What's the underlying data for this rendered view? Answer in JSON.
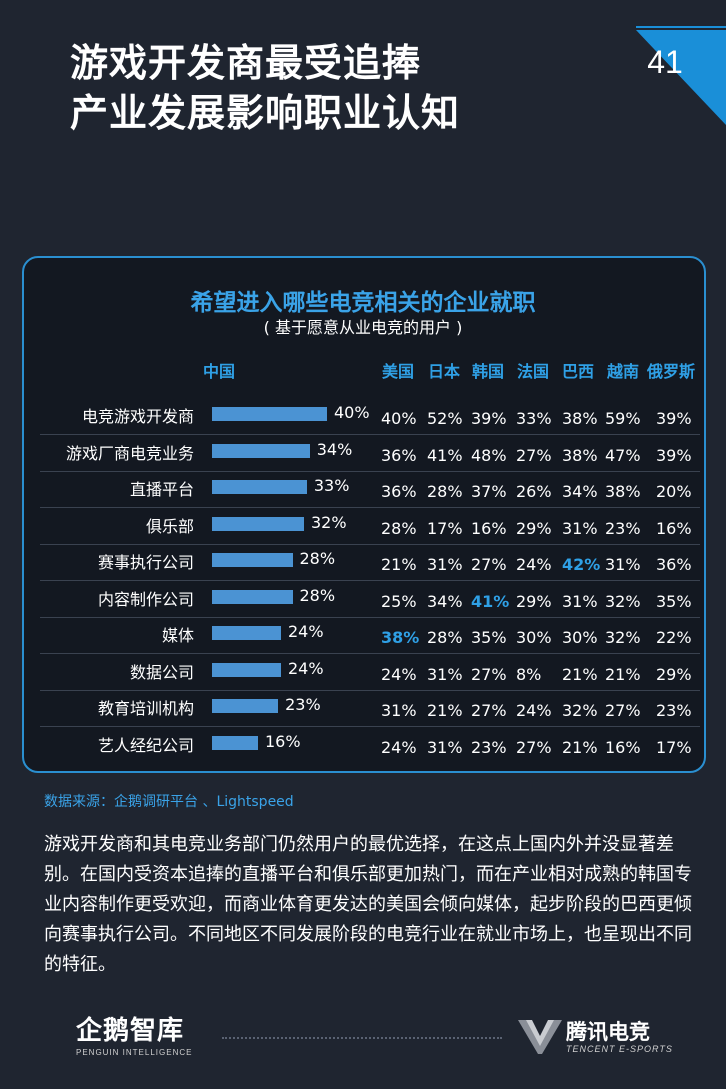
{
  "header": {
    "title_line1": "游戏开发商最受追捧",
    "title_line2": "产业发展影响职业认知",
    "page_number": "41",
    "corner_color": "#1a8fd8"
  },
  "chart_data": {
    "type": "bar",
    "title": "希望进入哪些电竞相关的企业就职",
    "subtitle": "( 基于愿意从业电竞的用户 )",
    "primary_series": "中国",
    "categories": [
      "电竞游戏开发商",
      "游戏厂商电竞业务",
      "直播平台",
      "俱乐部",
      "赛事执行公司",
      "内容制作公司",
      "媒体",
      "数据公司",
      "教育培训机构",
      "艺人经纪公司"
    ],
    "values": [
      40,
      34,
      33,
      32,
      28,
      28,
      24,
      24,
      23,
      16
    ],
    "value_labels": [
      "40%",
      "34%",
      "33%",
      "32%",
      "28%",
      "28%",
      "24%",
      "24%",
      "23%",
      "16%"
    ],
    "table_columns": [
      "美国",
      "日本",
      "韩国",
      "法国",
      "巴西",
      "越南",
      "俄罗斯"
    ],
    "table_rows": [
      [
        "40%",
        "52%",
        "39%",
        "33%",
        "38%",
        "59%",
        "39%"
      ],
      [
        "36%",
        "41%",
        "48%",
        "27%",
        "38%",
        "47%",
        "39%"
      ],
      [
        "36%",
        "28%",
        "37%",
        "26%",
        "34%",
        "38%",
        "20%"
      ],
      [
        "28%",
        "17%",
        "16%",
        "29%",
        "31%",
        "23%",
        "16%"
      ],
      [
        "21%",
        "31%",
        "27%",
        "24%",
        "42%",
        "31%",
        "36%"
      ],
      [
        "25%",
        "34%",
        "41%",
        "29%",
        "31%",
        "32%",
        "35%"
      ],
      [
        "38%",
        "28%",
        "35%",
        "30%",
        "30%",
        "32%",
        "22%"
      ],
      [
        "24%",
        "31%",
        "27%",
        "8%",
        "21%",
        "21%",
        "29%"
      ],
      [
        "31%",
        "21%",
        "27%",
        "24%",
        "32%",
        "27%",
        "23%"
      ],
      [
        "24%",
        "31%",
        "23%",
        "27%",
        "21%",
        "16%",
        "17%"
      ]
    ],
    "highlights": [
      [
        4,
        4
      ],
      [
        5,
        2
      ],
      [
        6,
        0
      ]
    ],
    "highlight_color": "#2fa0e6",
    "bar_color": "#4b93d3",
    "xlim": [
      0,
      40
    ]
  },
  "source": "数据来源：企鹅调研平台 、Lightspeed",
  "paragraph": "游戏开发商和其电竞业务部门仍然用户的最优选择，在这点上国内外并没显著差别。在国内受资本追捧的直播平台和俱乐部更加热门，而在产业相对成熟的韩国专业内容制作更受欢迎，而商业体育更发达的美国会倾向媒体，起步阶段的巴西更倾向赛事执行公司。不同地区不同发展阶段的电竞行业在就业市场上，也呈现出不同的特征。",
  "footer": {
    "left_logo": "企鹅智库",
    "left_logo_sub": "PENGUIN INTELLIGENCE",
    "right_logo": "腾讯电竞",
    "right_logo_sub": "TENCENT E-SPORTS"
  }
}
